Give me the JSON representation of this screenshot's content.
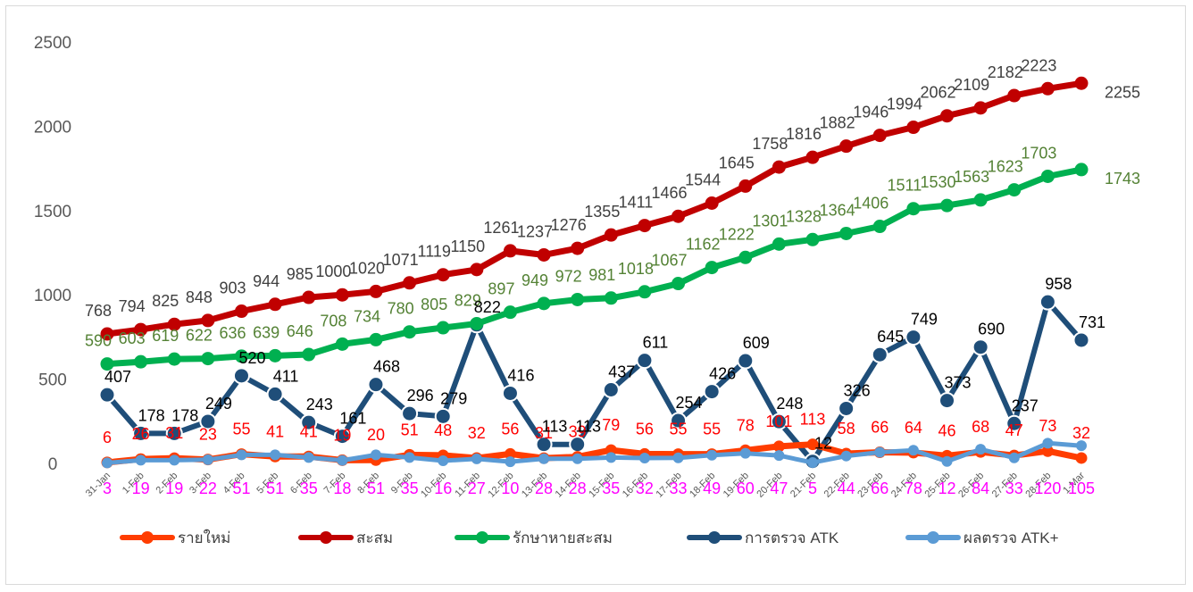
{
  "chart_data": {
    "type": "line",
    "title": "",
    "xlabel": "",
    "ylabel": "",
    "ylim": [
      0,
      2500
    ],
    "yticks": [
      0,
      500,
      1000,
      1500,
      2000,
      2500
    ],
    "grid": false,
    "legend_position": "bottom",
    "categories": [
      "31-Jan",
      "1-Feb",
      "2-Feb",
      "3-Feb",
      "4-Feb",
      "5-Feb",
      "6-Feb",
      "7-Feb",
      "8-Feb",
      "9-Feb",
      "10-Feb",
      "11-Feb",
      "12-Feb",
      "13-Feb",
      "14-Feb",
      "15-Feb",
      "16-Feb",
      "17-Feb",
      "18-Feb",
      "19-Feb",
      "20-Feb",
      "21-Feb",
      "22-Feb",
      "23-Feb",
      "24-Feb",
      "25-Feb",
      "26-Feb",
      "27-Feb",
      "28-Feb",
      "1-Mar"
    ],
    "series": [
      {
        "name": "รายใหม่",
        "color": "#ff3d00",
        "label_color": "#ff0000",
        "values": [
          6,
          26,
          31,
          23,
          55,
          41,
          41,
          19,
          20,
          51,
          48,
          32,
          56,
          31,
          39,
          79,
          56,
          55,
          55,
          78,
          101,
          113,
          58,
          66,
          64,
          46,
          68,
          47,
          73,
          32
        ]
      },
      {
        "name": "สะสม",
        "color": "#c00000",
        "label_color": "#404040",
        "values": [
          768,
          794,
          825,
          848,
          903,
          944,
          985,
          1000,
          1020,
          1071,
          1119,
          1150,
          1261,
          1237,
          1276,
          1355,
          1411,
          1466,
          1544,
          1645,
          1758,
          1816,
          1882,
          1946,
          1994,
          2062,
          2109,
          2182,
          2223,
          2255
        ]
      },
      {
        "name": "รักษาหายสะสม",
        "color": "#00b050",
        "label_color": "#548235",
        "values": [
          590,
          603,
          619,
          622,
          636,
          639,
          646,
          708,
          734,
          780,
          805,
          829,
          897,
          949,
          972,
          981,
          1018,
          1067,
          1162,
          1222,
          1301,
          1328,
          1364,
          1406,
          1511,
          1530,
          1563,
          1623,
          1703,
          1743
        ]
      },
      {
        "name": "การตรวจ ATK",
        "color": "#1f4e79",
        "label_color": "#000000",
        "values": [
          407,
          178,
          178,
          249,
          520,
          411,
          243,
          161,
          468,
          296,
          279,
          822,
          416,
          113,
          113,
          437,
          611,
          254,
          426,
          609,
          248,
          12,
          326,
          645,
          749,
          373,
          690,
          237,
          958,
          731
        ]
      },
      {
        "name": "ผลตรวจ ATK+",
        "color": "#5b9bd5",
        "label_color": "#ff00ff",
        "values": [
          3,
          19,
          19,
          22,
          51,
          51,
          35,
          18,
          51,
          35,
          16,
          27,
          10,
          28,
          28,
          35,
          32,
          33,
          49,
          60,
          47,
          5,
          44,
          66,
          78,
          12,
          84,
          33,
          120,
          105
        ]
      }
    ]
  }
}
